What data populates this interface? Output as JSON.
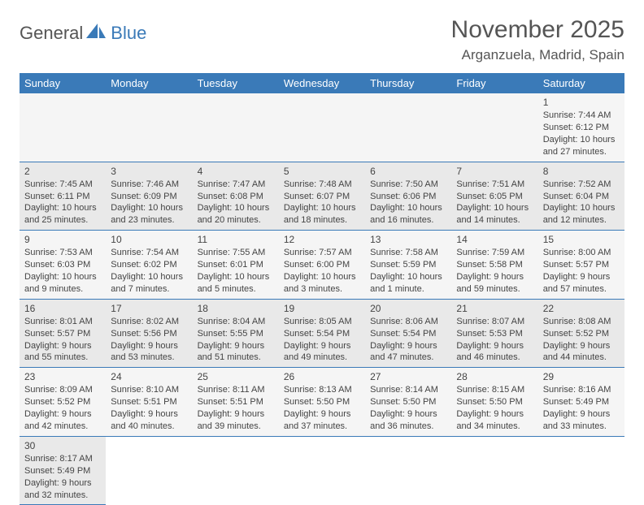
{
  "logo": {
    "text1": "General",
    "text2": "Blue"
  },
  "title": "November 2025",
  "location": "Arganzuela, Madrid, Spain",
  "colors": {
    "header_bg": "#3a7ab8",
    "header_text": "#ffffff",
    "row_light": "#f5f5f5",
    "row_dark": "#e9e9e9",
    "divider": "#3a7ab8",
    "text": "#444444",
    "title": "#555555",
    "logo_gray": "#555555",
    "logo_blue": "#3a7ab8"
  },
  "typography": {
    "title_fontsize": 30,
    "location_fontsize": 17,
    "header_fontsize": 13,
    "cell_fontsize": 11,
    "logo_fontsize": 22
  },
  "day_headers": [
    "Sunday",
    "Monday",
    "Tuesday",
    "Wednesday",
    "Thursday",
    "Friday",
    "Saturday"
  ],
  "weeks": [
    [
      null,
      null,
      null,
      null,
      null,
      null,
      {
        "n": "1",
        "sr": "Sunrise: 7:44 AM",
        "ss": "Sunset: 6:12 PM",
        "dl1": "Daylight: 10 hours",
        "dl2": "and 27 minutes."
      }
    ],
    [
      {
        "n": "2",
        "sr": "Sunrise: 7:45 AM",
        "ss": "Sunset: 6:11 PM",
        "dl1": "Daylight: 10 hours",
        "dl2": "and 25 minutes."
      },
      {
        "n": "3",
        "sr": "Sunrise: 7:46 AM",
        "ss": "Sunset: 6:09 PM",
        "dl1": "Daylight: 10 hours",
        "dl2": "and 23 minutes."
      },
      {
        "n": "4",
        "sr": "Sunrise: 7:47 AM",
        "ss": "Sunset: 6:08 PM",
        "dl1": "Daylight: 10 hours",
        "dl2": "and 20 minutes."
      },
      {
        "n": "5",
        "sr": "Sunrise: 7:48 AM",
        "ss": "Sunset: 6:07 PM",
        "dl1": "Daylight: 10 hours",
        "dl2": "and 18 minutes."
      },
      {
        "n": "6",
        "sr": "Sunrise: 7:50 AM",
        "ss": "Sunset: 6:06 PM",
        "dl1": "Daylight: 10 hours",
        "dl2": "and 16 minutes."
      },
      {
        "n": "7",
        "sr": "Sunrise: 7:51 AM",
        "ss": "Sunset: 6:05 PM",
        "dl1": "Daylight: 10 hours",
        "dl2": "and 14 minutes."
      },
      {
        "n": "8",
        "sr": "Sunrise: 7:52 AM",
        "ss": "Sunset: 6:04 PM",
        "dl1": "Daylight: 10 hours",
        "dl2": "and 12 minutes."
      }
    ],
    [
      {
        "n": "9",
        "sr": "Sunrise: 7:53 AM",
        "ss": "Sunset: 6:03 PM",
        "dl1": "Daylight: 10 hours",
        "dl2": "and 9 minutes."
      },
      {
        "n": "10",
        "sr": "Sunrise: 7:54 AM",
        "ss": "Sunset: 6:02 PM",
        "dl1": "Daylight: 10 hours",
        "dl2": "and 7 minutes."
      },
      {
        "n": "11",
        "sr": "Sunrise: 7:55 AM",
        "ss": "Sunset: 6:01 PM",
        "dl1": "Daylight: 10 hours",
        "dl2": "and 5 minutes."
      },
      {
        "n": "12",
        "sr": "Sunrise: 7:57 AM",
        "ss": "Sunset: 6:00 PM",
        "dl1": "Daylight: 10 hours",
        "dl2": "and 3 minutes."
      },
      {
        "n": "13",
        "sr": "Sunrise: 7:58 AM",
        "ss": "Sunset: 5:59 PM",
        "dl1": "Daylight: 10 hours",
        "dl2": "and 1 minute."
      },
      {
        "n": "14",
        "sr": "Sunrise: 7:59 AM",
        "ss": "Sunset: 5:58 PM",
        "dl1": "Daylight: 9 hours",
        "dl2": "and 59 minutes."
      },
      {
        "n": "15",
        "sr": "Sunrise: 8:00 AM",
        "ss": "Sunset: 5:57 PM",
        "dl1": "Daylight: 9 hours",
        "dl2": "and 57 minutes."
      }
    ],
    [
      {
        "n": "16",
        "sr": "Sunrise: 8:01 AM",
        "ss": "Sunset: 5:57 PM",
        "dl1": "Daylight: 9 hours",
        "dl2": "and 55 minutes."
      },
      {
        "n": "17",
        "sr": "Sunrise: 8:02 AM",
        "ss": "Sunset: 5:56 PM",
        "dl1": "Daylight: 9 hours",
        "dl2": "and 53 minutes."
      },
      {
        "n": "18",
        "sr": "Sunrise: 8:04 AM",
        "ss": "Sunset: 5:55 PM",
        "dl1": "Daylight: 9 hours",
        "dl2": "and 51 minutes."
      },
      {
        "n": "19",
        "sr": "Sunrise: 8:05 AM",
        "ss": "Sunset: 5:54 PM",
        "dl1": "Daylight: 9 hours",
        "dl2": "and 49 minutes."
      },
      {
        "n": "20",
        "sr": "Sunrise: 8:06 AM",
        "ss": "Sunset: 5:54 PM",
        "dl1": "Daylight: 9 hours",
        "dl2": "and 47 minutes."
      },
      {
        "n": "21",
        "sr": "Sunrise: 8:07 AM",
        "ss": "Sunset: 5:53 PM",
        "dl1": "Daylight: 9 hours",
        "dl2": "and 46 minutes."
      },
      {
        "n": "22",
        "sr": "Sunrise: 8:08 AM",
        "ss": "Sunset: 5:52 PM",
        "dl1": "Daylight: 9 hours",
        "dl2": "and 44 minutes."
      }
    ],
    [
      {
        "n": "23",
        "sr": "Sunrise: 8:09 AM",
        "ss": "Sunset: 5:52 PM",
        "dl1": "Daylight: 9 hours",
        "dl2": "and 42 minutes."
      },
      {
        "n": "24",
        "sr": "Sunrise: 8:10 AM",
        "ss": "Sunset: 5:51 PM",
        "dl1": "Daylight: 9 hours",
        "dl2": "and 40 minutes."
      },
      {
        "n": "25",
        "sr": "Sunrise: 8:11 AM",
        "ss": "Sunset: 5:51 PM",
        "dl1": "Daylight: 9 hours",
        "dl2": "and 39 minutes."
      },
      {
        "n": "26",
        "sr": "Sunrise: 8:13 AM",
        "ss": "Sunset: 5:50 PM",
        "dl1": "Daylight: 9 hours",
        "dl2": "and 37 minutes."
      },
      {
        "n": "27",
        "sr": "Sunrise: 8:14 AM",
        "ss": "Sunset: 5:50 PM",
        "dl1": "Daylight: 9 hours",
        "dl2": "and 36 minutes."
      },
      {
        "n": "28",
        "sr": "Sunrise: 8:15 AM",
        "ss": "Sunset: 5:50 PM",
        "dl1": "Daylight: 9 hours",
        "dl2": "and 34 minutes."
      },
      {
        "n": "29",
        "sr": "Sunrise: 8:16 AM",
        "ss": "Sunset: 5:49 PM",
        "dl1": "Daylight: 9 hours",
        "dl2": "and 33 minutes."
      }
    ],
    [
      {
        "n": "30",
        "sr": "Sunrise: 8:17 AM",
        "ss": "Sunset: 5:49 PM",
        "dl1": "Daylight: 9 hours",
        "dl2": "and 32 minutes."
      },
      null,
      null,
      null,
      null,
      null,
      null
    ]
  ]
}
